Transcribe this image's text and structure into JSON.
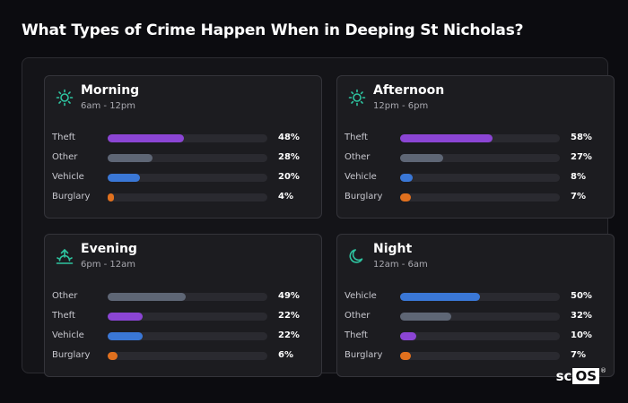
{
  "title": "What Types of Crime Happen When in Deeping St Nicholas?",
  "brand": {
    "left": "sc",
    "right": "OS",
    "mark": "®"
  },
  "colors": {
    "Theft": "#8b45d4",
    "Other": "#5e6675",
    "Vehicle": "#3a77d6",
    "Burglary": "#e0701e",
    "icon": "#2ec4a0"
  },
  "chart_data": [
    {
      "type": "bar",
      "title": "Morning",
      "subtitle": "6am - 12pm",
      "icon": "sun-icon",
      "categories": [
        "Theft",
        "Other",
        "Vehicle",
        "Burglary"
      ],
      "values": [
        48,
        28,
        20,
        4
      ],
      "labels": [
        "48%",
        "28%",
        "20%",
        "4%"
      ],
      "ylim": [
        0,
        100
      ]
    },
    {
      "type": "bar",
      "title": "Afternoon",
      "subtitle": "12pm - 6pm",
      "icon": "sun-icon",
      "categories": [
        "Theft",
        "Other",
        "Vehicle",
        "Burglary"
      ],
      "values": [
        58,
        27,
        8,
        7
      ],
      "labels": [
        "58%",
        "27%",
        "8%",
        "7%"
      ],
      "ylim": [
        0,
        100
      ]
    },
    {
      "type": "bar",
      "title": "Evening",
      "subtitle": "6pm - 12am",
      "icon": "sunset-icon",
      "categories": [
        "Other",
        "Theft",
        "Vehicle",
        "Burglary"
      ],
      "values": [
        49,
        22,
        22,
        6
      ],
      "labels": [
        "49%",
        "22%",
        "22%",
        "6%"
      ],
      "ylim": [
        0,
        100
      ]
    },
    {
      "type": "bar",
      "title": "Night",
      "subtitle": "12am - 6am",
      "icon": "moon-icon",
      "categories": [
        "Vehicle",
        "Other",
        "Theft",
        "Burglary"
      ],
      "values": [
        50,
        32,
        10,
        7
      ],
      "labels": [
        "50%",
        "32%",
        "10%",
        "7%"
      ],
      "ylim": [
        0,
        100
      ]
    }
  ]
}
